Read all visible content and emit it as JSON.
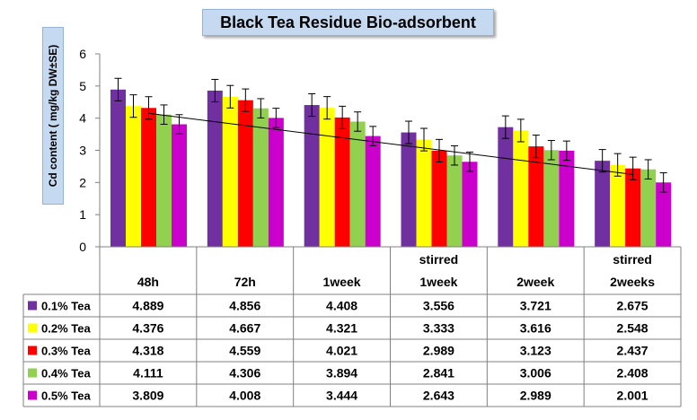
{
  "chart_data": {
    "type": "bar",
    "title": "Black Tea Residue Bio-adsorbent",
    "ylabel": "Cd content ( mg/kg DW±SE)",
    "xlabel": "",
    "ylim": [
      0,
      6
    ],
    "yticks": [
      0,
      1,
      2,
      3,
      4,
      5,
      6
    ],
    "grid": false,
    "legend": "left data-table rows",
    "categories": [
      {
        "top": "",
        "bottom": "48h"
      },
      {
        "top": "",
        "bottom": "72h"
      },
      {
        "top": "",
        "bottom": "1week"
      },
      {
        "top": "stirred",
        "bottom": "1week"
      },
      {
        "top": "",
        "bottom": "2week"
      },
      {
        "top": "stirred",
        "bottom": "2weeks"
      }
    ],
    "series": [
      {
        "name": "0.1% Tea",
        "color": "#7030a0",
        "values": [
          4.889,
          4.856,
          4.408,
          3.556,
          3.721,
          2.675
        ]
      },
      {
        "name": "0.2% Tea",
        "color": "#ffff00",
        "values": [
          4.376,
          4.667,
          4.321,
          3.333,
          3.616,
          2.548
        ]
      },
      {
        "name": "0.3% Tea",
        "color": "#ff0000",
        "values": [
          4.318,
          4.559,
          4.021,
          2.989,
          3.123,
          2.437
        ]
      },
      {
        "name": "0.4% Tea",
        "color": "#92d050",
        "values": [
          4.111,
          4.306,
          3.894,
          2.841,
          3.006,
          2.408
        ]
      },
      {
        "name": "0.5% Tea",
        "color": "#cc00cc",
        "values": [
          3.809,
          4.008,
          3.444,
          2.643,
          2.989,
          2.001
        ]
      }
    ],
    "value_labels": [
      [
        "4.889",
        "4.856",
        "4.408",
        "3.556",
        "3.721",
        "2.675"
      ],
      [
        "4.376",
        "4.667",
        "4.321",
        "3.333",
        "3.616",
        "2.548"
      ],
      [
        "4.318",
        "4.559",
        "4.021",
        "2.989",
        "3.123",
        "2.437"
      ],
      [
        "4.111",
        "4.306",
        "3.894",
        "2.841",
        "3.006",
        "2.408"
      ],
      [
        "3.809",
        "4.008",
        "3.444",
        "2.643",
        "2.989",
        "2.001"
      ]
    ],
    "error_bars": [
      [
        0.35,
        0.35,
        0.35,
        0.35,
        0.35,
        0.35
      ],
      [
        0.35,
        0.35,
        0.35,
        0.35,
        0.35,
        0.35
      ],
      [
        0.35,
        0.35,
        0.35,
        0.35,
        0.35,
        0.35
      ],
      [
        0.3,
        0.3,
        0.3,
        0.3,
        0.3,
        0.3
      ],
      [
        0.3,
        0.3,
        0.3,
        0.3,
        0.3,
        0.3
      ]
    ],
    "trendline": {
      "type": "linear",
      "from": 4.15,
      "to": 2.25
    }
  }
}
